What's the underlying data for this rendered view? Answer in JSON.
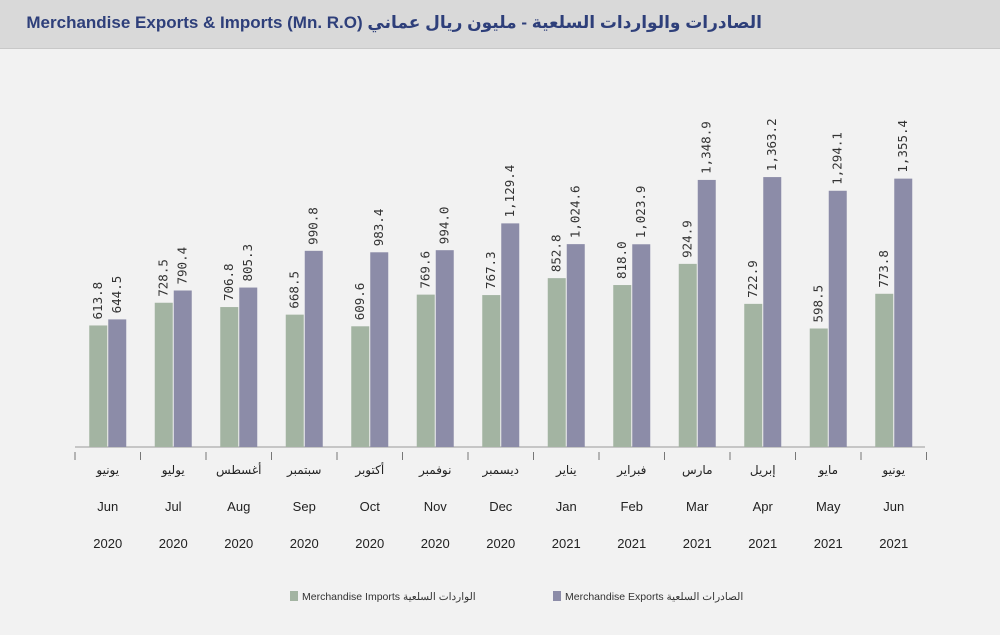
{
  "chart_data": {
    "type": "bar",
    "title": "Merchandise Exports & Imports (Mn. R.O)  الصادرات والواردات السلعية - مليون ريال عماني",
    "categories": [
      {
        "ar": "يونيو",
        "month": "Jun",
        "year": "2020"
      },
      {
        "ar": "يوليو",
        "month": "Jul",
        "year": "2020"
      },
      {
        "ar": "أغسطس",
        "month": "Aug",
        "year": "2020"
      },
      {
        "ar": "سبتمبر",
        "month": "Sep",
        "year": "2020"
      },
      {
        "ar": "أكتوبر",
        "month": "Oct",
        "year": "2020"
      },
      {
        "ar": "نوفمبر",
        "month": "Nov",
        "year": "2020"
      },
      {
        "ar": "ديسمبر",
        "month": "Dec",
        "year": "2020"
      },
      {
        "ar": "يناير",
        "month": "Jan",
        "year": "2021"
      },
      {
        "ar": "فبراير",
        "month": "Feb",
        "year": "2021"
      },
      {
        "ar": "مارس",
        "month": "Mar",
        "year": "2021"
      },
      {
        "ar": "إبريل",
        "month": "Apr",
        "year": "2021"
      },
      {
        "ar": "مايو",
        "month": "May",
        "year": "2021"
      },
      {
        "ar": "يونيو",
        "month": "Jun",
        "year": "2021"
      }
    ],
    "series": [
      {
        "name": "Merchandise Imports الواردات السلعية",
        "color": "#a3b4a2",
        "values": [
          613.8,
          728.5,
          706.8,
          668.5,
          609.6,
          769.6,
          767.3,
          852.8,
          818.0,
          924.9,
          722.9,
          598.5,
          773.8
        ],
        "labels": [
          "613.8",
          "728.5",
          "706.8",
          "668.5",
          "609.6",
          "769.6",
          "767.3",
          "852.8",
          "818.0",
          "924.9",
          "722.9",
          "598.5",
          "773.8"
        ]
      },
      {
        "name": "Merchandise Exports الصادرات السلعية",
        "color": "#8c8ca8",
        "values": [
          644.5,
          790.4,
          805.3,
          990.8,
          983.4,
          994.0,
          1129.4,
          1024.6,
          1023.9,
          1348.9,
          1363.2,
          1294.1,
          1355.4
        ],
        "labels": [
          "644.5",
          "790.4",
          "805.3",
          "990.8",
          "983.4",
          "994.0",
          "1,129.4",
          "1,024.6",
          "1,023.9",
          "1,348.9",
          "1,363.2",
          "1,294.1",
          "1,355.4"
        ]
      }
    ],
    "ylim": [
      0,
      1500
    ],
    "legend_position": "bottom-center"
  }
}
